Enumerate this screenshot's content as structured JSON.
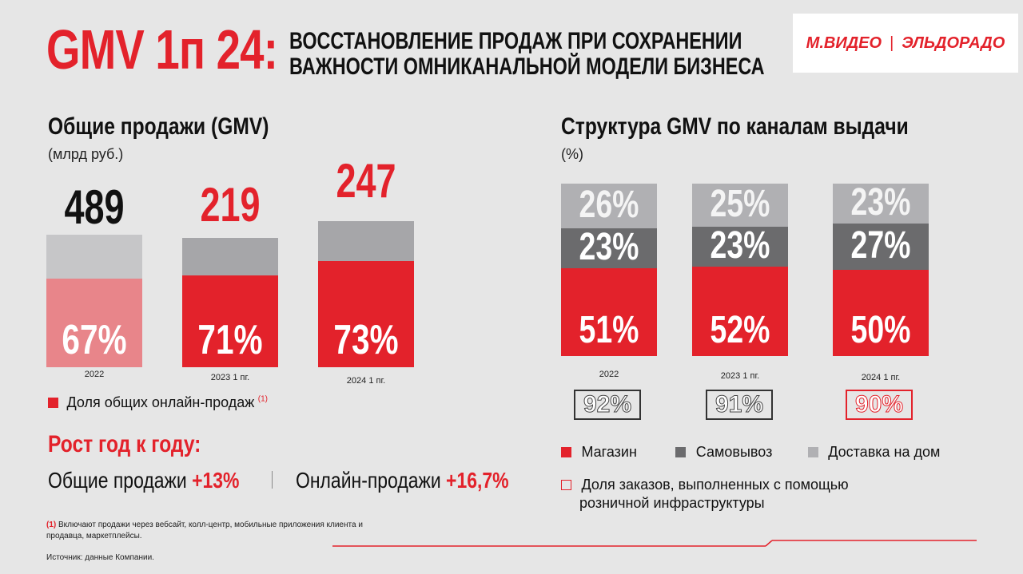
{
  "header": {
    "big_title": "GMV 1п 24:",
    "subtitle_line1": "ВОССТАНОВЛЕНИЕ ПРОДАЖ ПРИ СОХРАНЕНИИ",
    "subtitle_line2": "ВАЖНОСТИ ОМНИКАНАЛЬНОЙ МОДЕЛИ БИЗНЕСА",
    "logo_left": "М.ВИДЕО",
    "logo_sep": "|",
    "logo_right": "ЭЛЬДОРАДО"
  },
  "left": {
    "title": "Общие продажи (GMV)",
    "unit": "(млрд руб.)",
    "legend": "Доля общих онлайн-продаж",
    "legend_sup": "(1)"
  },
  "right": {
    "title": "Структура GMV по каналам выдачи",
    "unit": "(%)",
    "legend": [
      "Магазин",
      "Самовывоз",
      "Доставка на дом"
    ],
    "share_legend_line1": "Доля заказов, выполненных с помощью",
    "share_legend_line2": "розничной  инфраструктуры",
    "share_values": [
      "92%",
      "91%",
      "90%"
    ]
  },
  "growth": {
    "title": "Рост год к году:",
    "total_label": "Общие продажи",
    "total_value": "+13%",
    "online_label": "Онлайн-продажи",
    "online_value": "+16,7%"
  },
  "footnote": {
    "mark": "(1)",
    "text": "Включают продажи через вебсайт, колл-центр, мобильные приложения клиента и продавца, маркетплейсы.",
    "source": "Источник: данные Компании."
  },
  "colors": {
    "accent": "#e3222b",
    "accent_faded": "#e8858a",
    "bar_grey": "#a6a6a9",
    "bar_grey_light": "#c6c6c8",
    "pickup_grey": "#6b6b6d",
    "delivery_grey": "#b0b0b3"
  },
  "chart_data": [
    {
      "type": "bar",
      "title": "Общие продажи (GMV)",
      "ylabel": "(млрд руб.)",
      "categories": [
        "2022",
        "2023 1 пг.",
        "2024 1 пг."
      ],
      "values": [
        489,
        219,
        247
      ],
      "value_labels": [
        "489",
        "219",
        "247"
      ],
      "online_share_pct": [
        67,
        71,
        73
      ],
      "online_share_labels": [
        "67%",
        "71%",
        "73%"
      ],
      "legend": [
        "Доля общих онлайн-продаж"
      ]
    },
    {
      "type": "bar",
      "stacked": true,
      "title": "Структура GMV по каналам выдачи",
      "ylabel": "(%)",
      "categories": [
        "2022",
        "2023 1 пг.",
        "2024 1 пг."
      ],
      "series": [
        {
          "name": "Магазин",
          "values": [
            51,
            52,
            50
          ],
          "labels": [
            "51%",
            "52%",
            "50%"
          ]
        },
        {
          "name": "Самовывоз",
          "values": [
            23,
            23,
            27
          ],
          "labels": [
            "23%",
            "23%",
            "27%"
          ]
        },
        {
          "name": "Доставка на дом",
          "values": [
            26,
            25,
            23
          ],
          "labels": [
            "26%",
            "25%",
            "23%"
          ]
        }
      ],
      "share_retail_infrastructure": [
        92,
        91,
        90
      ]
    }
  ]
}
